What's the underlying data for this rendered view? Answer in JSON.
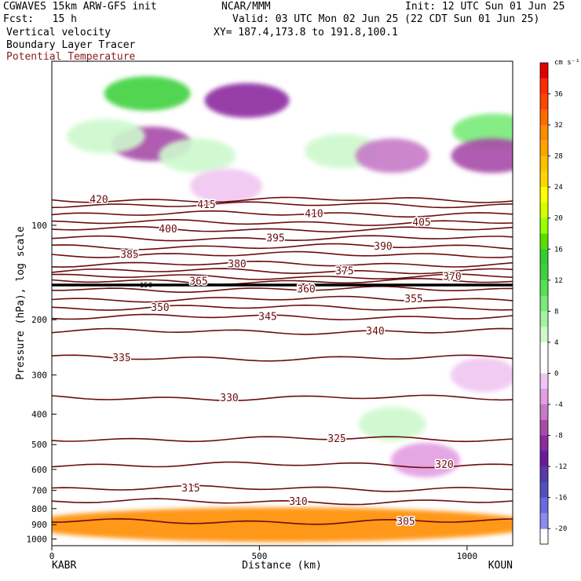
{
  "header": {
    "model": "CGWAVES 15km ARW-GFS init",
    "org": "NCAR/MMM",
    "init": "Init: 12 UTC Sun 01 Jun 25",
    "fcst": "Fcst:   15 h",
    "valid": "Valid: 03 UTC Mon 02 Jun 25 (22 CDT Sun 01 Jun 25)",
    "field1": "Vertical velocity",
    "xy": "XY= 187.4,173.8 to 191.8,100.1",
    "field2": "Boundary Layer Tracer",
    "field3": "Potential Temperature"
  },
  "chart_data": {
    "type": "cross-section",
    "xlabel": "Distance (km)",
    "ylabel": "Pressure (hPa), log scale",
    "x_ticks": [
      0,
      500,
      1000
    ],
    "xlim": [
      0,
      1110
    ],
    "x_endpoints": {
      "left": "KABR",
      "right": "KOUN"
    },
    "y_ticks": [
      100,
      200,
      300,
      400,
      500,
      600,
      700,
      800,
      900,
      1000
    ],
    "ylim": [
      1050,
      30
    ],
    "colorbar": {
      "units": "cm s⁻¹",
      "tick_labels": [
        36,
        32,
        28,
        24,
        20,
        16,
        12,
        8,
        4,
        0,
        -4,
        -8,
        -12,
        -16,
        -20
      ],
      "bins": [
        {
          "v": 38,
          "color": "#e00000"
        },
        {
          "v": 36,
          "color": "#ff2a00"
        },
        {
          "v": 34,
          "color": "#ff4500"
        },
        {
          "v": 32,
          "color": "#ff6a00"
        },
        {
          "v": 30,
          "color": "#ff8c00"
        },
        {
          "v": 28,
          "color": "#ffa500"
        },
        {
          "v": 26,
          "color": "#ffc000"
        },
        {
          "v": 24,
          "color": "#ffd700"
        },
        {
          "v": 22,
          "color": "#ffff00"
        },
        {
          "v": 20,
          "color": "#d4ff00"
        },
        {
          "v": 18,
          "color": "#9aff00"
        },
        {
          "v": 16,
          "color": "#55e000"
        },
        {
          "v": 14,
          "color": "#33cc33"
        },
        {
          "v": 12,
          "color": "#3fd23f"
        },
        {
          "v": 10,
          "color": "#55e055"
        },
        {
          "v": 8,
          "color": "#7aea7a"
        },
        {
          "v": 6,
          "color": "#a3f3a3"
        },
        {
          "v": 4,
          "color": "#cdf9cd"
        },
        {
          "v": 2,
          "color": "#ffffff"
        },
        {
          "v": 0,
          "color": "#ffffff"
        },
        {
          "v": -2,
          "color": "#f0c6f0"
        },
        {
          "v": -4,
          "color": "#e29ee2"
        },
        {
          "v": -6,
          "color": "#c77ac7"
        },
        {
          "v": -8,
          "color": "#a84ba8"
        },
        {
          "v": -10,
          "color": "#8c2aa0"
        },
        {
          "v": -12,
          "color": "#6a1aa0"
        },
        {
          "v": -14,
          "color": "#5a3aa8"
        },
        {
          "v": -16,
          "color": "#5050c0"
        },
        {
          "v": -18,
          "color": "#6a6ae0"
        },
        {
          "v": -20,
          "color": "#8a8af0"
        }
      ]
    },
    "theta_contours": [
      {
        "label": "420",
        "p": 83
      },
      {
        "label": "415",
        "p": 86
      },
      {
        "label": "410",
        "p": 92
      },
      {
        "label": "405",
        "p": 98
      },
      {
        "label": "400",
        "p": 103
      },
      {
        "label": "395",
        "p": 110
      },
      {
        "label": "390",
        "p": 117
      },
      {
        "label": "385",
        "p": 124
      },
      {
        "label": "380",
        "p": 133
      },
      {
        "label": "375",
        "p": 140
      },
      {
        "label": "370",
        "p": 146
      },
      {
        "label": "365",
        "p": 151
      },
      {
        "label": "360",
        "p": 160
      },
      {
        "label": "355",
        "p": 172
      },
      {
        "label": "350",
        "p": 183
      },
      {
        "label": "345",
        "p": 196
      },
      {
        "label": "340",
        "p": 218
      },
      {
        "label": "335",
        "p": 265
      },
      {
        "label": "330",
        "p": 355
      },
      {
        "label": "325",
        "p": 480
      },
      {
        "label": "320",
        "p": 580
      },
      {
        "label": "315",
        "p": 690
      },
      {
        "label": "310",
        "p": 760
      },
      {
        "label": "305",
        "p": 880
      }
    ],
    "tropopause_label": "150",
    "w_blobs": [
      {
        "x": 230,
        "p": 38,
        "v": 12
      },
      {
        "x": 470,
        "p": 40,
        "v": -10
      },
      {
        "x": 1065,
        "p": 50,
        "v": 8
      },
      {
        "x": 1060,
        "p": 60,
        "v": -8
      },
      {
        "x": 240,
        "p": 55,
        "v": -8
      },
      {
        "x": 130,
        "p": 52,
        "v": 4
      },
      {
        "x": 350,
        "p": 60,
        "v": 4
      },
      {
        "x": 700,
        "p": 58,
        "v": 4
      },
      {
        "x": 820,
        "p": 60,
        "v": -6
      },
      {
        "x": 420,
        "p": 75,
        "v": -2
      },
      {
        "x": 550,
        "p": 900,
        "v": 30
      },
      {
        "x": 900,
        "p": 560,
        "v": -4
      },
      {
        "x": 820,
        "p": 430,
        "v": 4
      },
      {
        "x": 1040,
        "p": 300,
        "v": -2
      }
    ]
  }
}
